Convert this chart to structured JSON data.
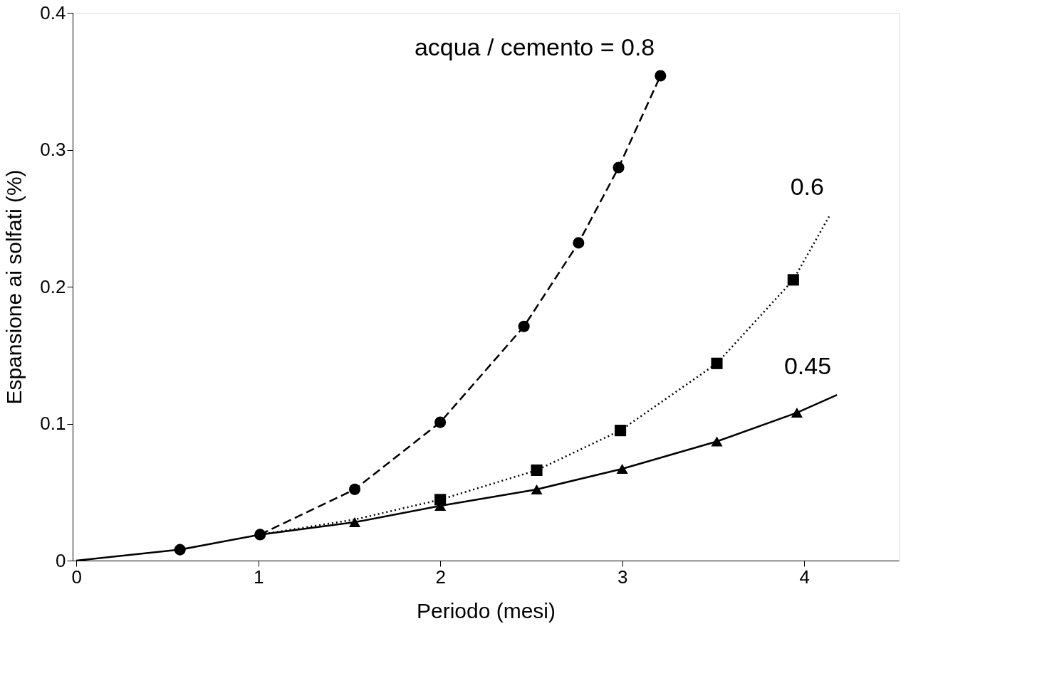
{
  "chart_data": {
    "type": "line",
    "xlabel": "Periodo (mesi)",
    "ylabel": "Espansione ai solfati (%)",
    "xlim": [
      -0.02,
      4.52
    ],
    "ylim": [
      0,
      0.4
    ],
    "xticks": [
      0,
      1,
      2,
      3,
      4
    ],
    "yticks": [
      0,
      0.1,
      0.2,
      0.3,
      0.4
    ],
    "marker": "none",
    "series": [
      {
        "name": "0.45",
        "color": "#000000",
        "line_style": "solid",
        "x": [
          0,
          0.57,
          1.01,
          1.53,
          2.0,
          2.53,
          3.0,
          3.52,
          3.96,
          4.18
        ],
        "values": [
          0,
          0.008,
          0.019,
          0.028,
          0.04,
          0.052,
          0.067,
          0.087,
          0.108,
          0.121
        ]
      },
      {
        "name": "0.6",
        "color": "#000000",
        "line_style": "dotted",
        "x": [
          1.01,
          1.53,
          2.0,
          2.53,
          2.99,
          3.52,
          3.94,
          4.14
        ],
        "values": [
          0.019,
          0.03,
          0.0445,
          0.066,
          0.095,
          0.144,
          0.205,
          0.252
        ]
      },
      {
        "name": "acqua / cemento = 0.8",
        "color": "#000000",
        "line_style": "dashed",
        "x": [
          1.01,
          1.53,
          2.0,
          2.46,
          2.76,
          2.98,
          3.21
        ],
        "values": [
          0.019,
          0.052,
          0.101,
          0.171,
          0.232,
          0.287,
          0.354
        ]
      },
      {
        "type": "scatter",
        "color": "#000000",
        "marker": "circle",
        "x": [
          0.57,
          1.01,
          1.53,
          2.0,
          2.46,
          2.76,
          2.98,
          3.21
        ],
        "values": [
          0.008,
          0.019,
          0.052,
          0.101,
          0.171,
          0.232,
          0.287,
          0.354
        ]
      },
      {
        "type": "scatter",
        "color": "#000000",
        "marker": "square",
        "x": [
          2.0,
          2.53,
          2.99,
          3.52,
          3.94
        ],
        "values": [
          0.0445,
          0.066,
          0.095,
          0.144,
          0.205
        ]
      },
      {
        "type": "scatter",
        "color": "#000000",
        "marker": "triangle",
        "x": [
          1.53,
          2.0,
          2.53,
          3.0,
          3.52,
          3.96
        ],
        "values": [
          0.028,
          0.04,
          0.052,
          0.067,
          0.087,
          0.108
        ]
      }
    ]
  }
}
